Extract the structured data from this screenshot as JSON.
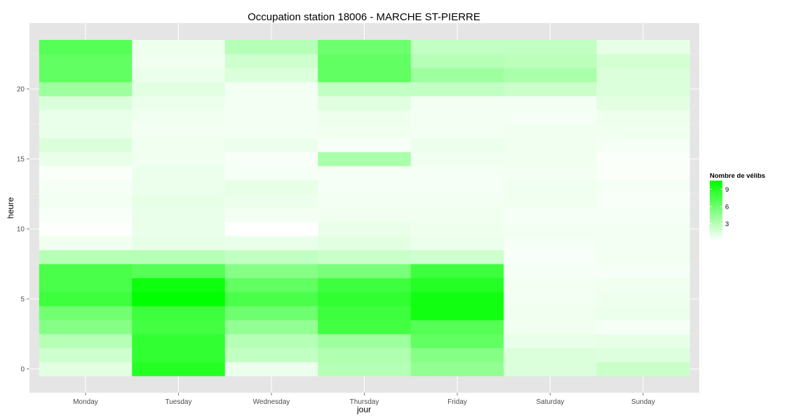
{
  "chart_data": {
    "type": "heatmap",
    "title": "Occupation station 18006 - MARCHE ST-PIERRE",
    "xlabel": "jour",
    "ylabel": "heure",
    "categories": [
      "Monday",
      "Tuesday",
      "Wednesday",
      "Thursday",
      "Friday",
      "Saturday",
      "Sunday"
    ],
    "y_ticks": [
      0,
      5,
      10,
      15,
      20
    ],
    "ylim": [
      -0.5,
      23.5
    ],
    "grid": true,
    "legend": {
      "title": "Nombre de vélibs",
      "ticks": [
        3,
        6,
        9
      ],
      "min": 0,
      "max": 10.5,
      "low_color": "#ffffff",
      "high_color": "#00ff00",
      "placement": "right"
    },
    "values": [
      [
        1.2,
        9.0,
        0.8,
        3.0,
        4.5,
        1.5,
        2.2
      ],
      [
        2.0,
        8.5,
        2.5,
        3.2,
        5.0,
        1.5,
        1.4
      ],
      [
        3.0,
        8.5,
        3.0,
        4.0,
        6.5,
        0.9,
        1.0
      ],
      [
        5.0,
        7.8,
        4.5,
        7.8,
        7.0,
        0.6,
        0.4
      ],
      [
        5.8,
        8.0,
        6.0,
        8.0,
        9.8,
        0.6,
        0.8
      ],
      [
        8.0,
        10.5,
        7.5,
        8.5,
        9.8,
        0.5,
        0.7
      ],
      [
        7.5,
        10.0,
        6.5,
        8.0,
        9.0,
        0.5,
        0.6
      ],
      [
        7.5,
        7.0,
        5.0,
        5.5,
        8.0,
        0.4,
        0.4
      ],
      [
        3.0,
        3.0,
        2.5,
        2.2,
        2.0,
        0.3,
        0.5
      ],
      [
        0.6,
        1.0,
        0.9,
        1.2,
        0.8,
        0.4,
        0.5
      ],
      [
        0.1,
        0.9,
        0.0,
        0.9,
        0.7,
        0.5,
        0.5
      ],
      [
        0.3,
        0.9,
        0.5,
        0.6,
        0.6,
        0.4,
        0.4
      ],
      [
        0.5,
        1.0,
        0.8,
        0.5,
        0.5,
        0.6,
        0.3
      ],
      [
        0.4,
        0.8,
        1.0,
        0.4,
        0.4,
        0.6,
        0.4
      ],
      [
        0.2,
        0.8,
        0.4,
        0.4,
        0.4,
        0.5,
        0.2
      ],
      [
        0.9,
        0.6,
        0.3,
        3.5,
        0.6,
        0.6,
        0.2
      ],
      [
        1.5,
        0.6,
        0.8,
        0.3,
        0.8,
        0.6,
        0.4
      ],
      [
        0.9,
        0.5,
        0.5,
        0.6,
        0.5,
        0.6,
        0.6
      ],
      [
        0.9,
        0.6,
        0.5,
        0.7,
        0.5,
        0.4,
        0.7
      ],
      [
        1.5,
        0.8,
        0.5,
        1.3,
        0.5,
        0.5,
        1.2
      ],
      [
        4.0,
        1.2,
        0.5,
        2.5,
        2.5,
        2.2,
        1.5
      ],
      [
        6.5,
        0.8,
        1.5,
        6.5,
        4.0,
        3.5,
        1.5
      ],
      [
        6.5,
        0.6,
        2.0,
        6.5,
        3.0,
        2.8,
        1.8
      ],
      [
        7.0,
        0.7,
        3.0,
        6.0,
        2.5,
        2.5,
        1.0
      ]
    ]
  }
}
